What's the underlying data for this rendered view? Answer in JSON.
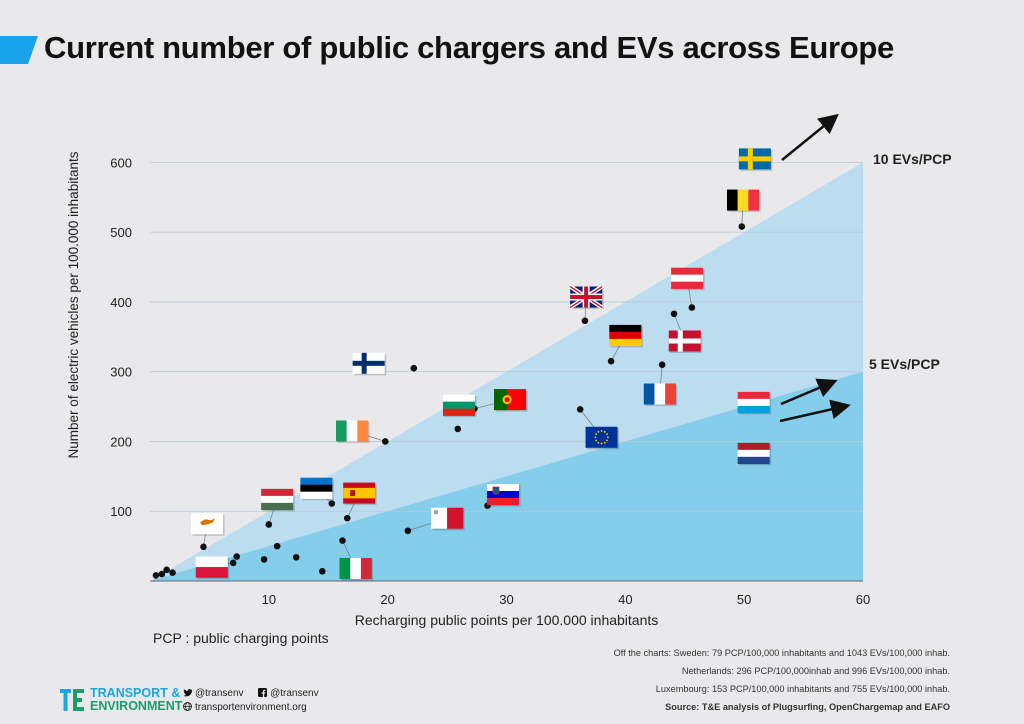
{
  "header": {
    "title": "Current number of public chargers and EVs across Europe",
    "accent_color": "#1aa3e8"
  },
  "chart_data": {
    "type": "scatter",
    "title": "Current number of public chargers and EVs across Europe",
    "xlabel": "Recharging public points per 100.000 inhabitants",
    "ylabel": "Number of electric vehicles per 100.000 inhabitants",
    "xlim": [
      0,
      60
    ],
    "ylim": [
      0,
      650
    ],
    "xticks": [
      10,
      20,
      30,
      40,
      50,
      60
    ],
    "yticks": [
      100,
      200,
      300,
      400,
      500,
      600
    ],
    "grid": "horizontal",
    "reference_lines": [
      {
        "label": "10 EVs/PCP",
        "slope": 10,
        "color": "#bcdcef"
      },
      {
        "label": "5 EVs/PCP",
        "slope": 5,
        "color": "#84cdeb"
      }
    ],
    "points": [
      {
        "x": 0.5,
        "y": 8
      },
      {
        "x": 1.0,
        "y": 10
      },
      {
        "x": 1.4,
        "y": 16
      },
      {
        "x": 1.9,
        "y": 12
      },
      {
        "x": 4.5,
        "y": 49
      },
      {
        "x": 7.0,
        "y": 26
      },
      {
        "x": 7.3,
        "y": 35
      },
      {
        "x": 9.6,
        "y": 31
      },
      {
        "x": 10.0,
        "y": 81
      },
      {
        "x": 10.7,
        "y": 50
      },
      {
        "x": 12.3,
        "y": 34
      },
      {
        "x": 14.5,
        "y": 14
      },
      {
        "x": 15.3,
        "y": 111
      },
      {
        "x": 16.2,
        "y": 58
      },
      {
        "x": 16.6,
        "y": 90
      },
      {
        "x": 19.8,
        "y": 200
      },
      {
        "x": 21.7,
        "y": 72
      },
      {
        "x": 22.2,
        "y": 305
      },
      {
        "x": 25.9,
        "y": 218
      },
      {
        "x": 27.3,
        "y": 247
      },
      {
        "x": 28.4,
        "y": 108
      },
      {
        "x": 36.2,
        "y": 246
      },
      {
        "x": 36.6,
        "y": 373
      },
      {
        "x": 38.8,
        "y": 315
      },
      {
        "x": 43.1,
        "y": 310
      },
      {
        "x": 44.1,
        "y": 383
      },
      {
        "x": 45.6,
        "y": 392
      },
      {
        "x": 49.8,
        "y": 508
      }
    ],
    "flags": [
      {
        "country": "Poland",
        "x": 5.2,
        "y": 20
      },
      {
        "country": "Cyprus",
        "x": 4.8,
        "y": 82
      },
      {
        "country": "Hungary",
        "x": 10.7,
        "y": 117
      },
      {
        "country": "Estonia",
        "x": 14.0,
        "y": 133
      },
      {
        "country": "Spain",
        "x": 17.6,
        "y": 126
      },
      {
        "country": "Italy",
        "x": 17.3,
        "y": 18
      },
      {
        "country": "Ireland",
        "x": 17.0,
        "y": 215
      },
      {
        "country": "Finland",
        "x": 18.4,
        "y": 312
      },
      {
        "country": "Bulgaria",
        "x": 26.0,
        "y": 252
      },
      {
        "country": "Portugal",
        "x": 30.3,
        "y": 260
      },
      {
        "country": "Malta",
        "x": 25.0,
        "y": 90
      },
      {
        "country": "Slovenia",
        "x": 29.7,
        "y": 124
      },
      {
        "country": "United Kingdom",
        "x": 36.7,
        "y": 407
      },
      {
        "country": "EU",
        "x": 38.0,
        "y": 206
      },
      {
        "country": "Germany",
        "x": 40.0,
        "y": 352
      },
      {
        "country": "France",
        "x": 42.9,
        "y": 268
      },
      {
        "country": "Austria",
        "x": 45.2,
        "y": 434
      },
      {
        "country": "Denmark",
        "x": 45.0,
        "y": 344
      },
      {
        "country": "Belgium",
        "x": 49.9,
        "y": 546
      },
      {
        "country": "Sweden",
        "x": 50.9,
        "y": 605
      },
      {
        "country": "Luxembourg",
        "x": 50.8,
        "y": 256
      },
      {
        "country": "Netherlands",
        "x": 50.8,
        "y": 183
      }
    ]
  },
  "footer": {
    "pcp_note": "PCP : public charging points",
    "notes": [
      "Off the charts: Sweden: 79 PCP/100,000 inhabitants and 1043 EVs/100,000 inhab.",
      "Netherlands: 296 PCP/100,000inhab and 996 EVs/100,000 inhab.",
      "Luxembourg: 153 PCP/100,000 inhabitants and 755 EVs/100,000 inhab."
    ],
    "source": "Source: T&E analysis of Plugsurfing, OpenChargemap and EAFO",
    "logo": {
      "line1": "TRANSPORT &",
      "line2": "ENVIRONMENT",
      "color1": "#19a7e0",
      "color2": "#1b9d6a"
    },
    "twitter": "@transenv",
    "facebook": "@transenv",
    "website": "transportenvironment.org"
  }
}
